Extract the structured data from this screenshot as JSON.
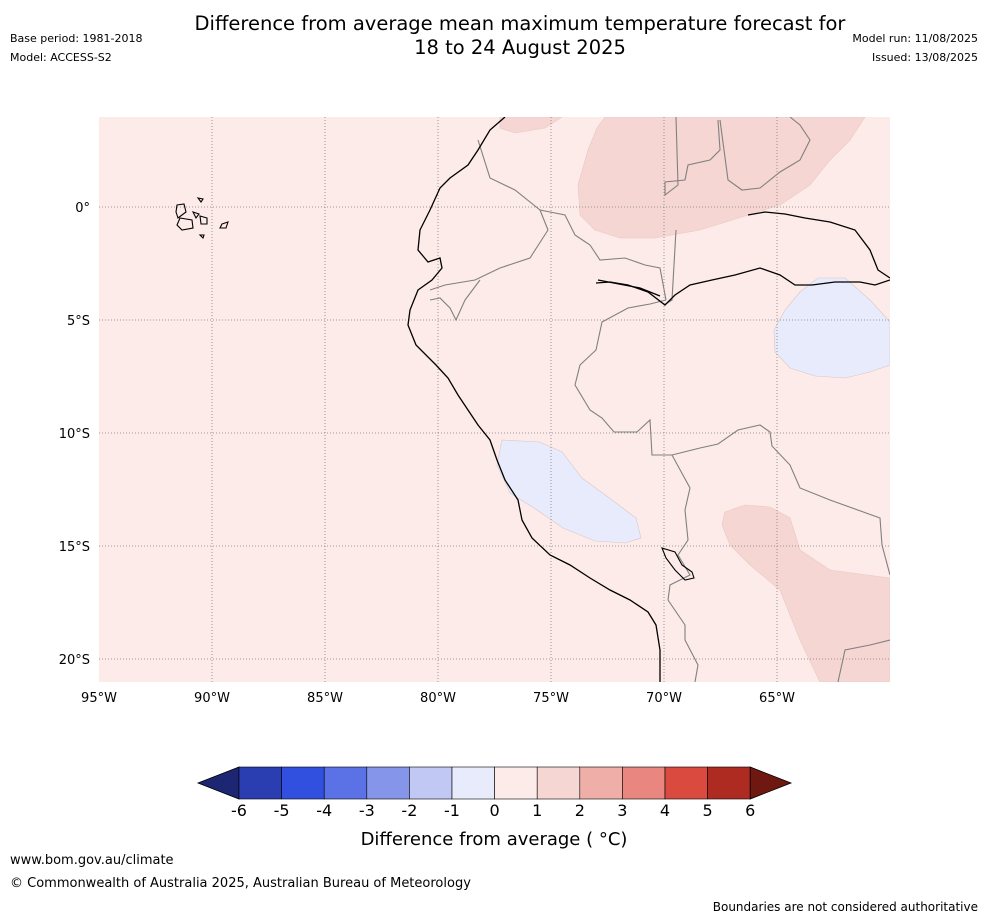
{
  "header": {
    "title_line1": "Difference from average mean maximum temperature forecast for",
    "title_line2": "18 to 24 August 2025",
    "base_period": "Base period: 1981-2018",
    "model": "Model: ACCESS-S2",
    "model_run": "Model run: 11/08/2025",
    "issued": "Issued: 13/08/2025"
  },
  "map": {
    "lat_labels": [
      "0°",
      "5°S",
      "10°S",
      "15°S",
      "20°S"
    ],
    "lon_labels": [
      "95°W",
      "90°W",
      "85°W",
      "80°W",
      "75°W",
      "70°W",
      "65°W"
    ],
    "colors": {
      "background_anomaly": "#fcebe9",
      "warm_anomaly": "#f5d6d2",
      "cool_anomaly": "#e7ebfb",
      "coastline": "#000000",
      "borders": "#808080",
      "gridlines": "#7f7f7f"
    }
  },
  "colorbar": {
    "label": "Difference from average ( °C)",
    "ticks": [
      "-6",
      "-5",
      "-4",
      "-3",
      "-2",
      "-1",
      "0",
      "1",
      "2",
      "3",
      "4",
      "5",
      "6"
    ],
    "colors": [
      "#1c2673",
      "#2a3eb1",
      "#3150e0",
      "#5a72e6",
      "#8595ea",
      "#c1c8f4",
      "#e7ebfb",
      "#fcebe9",
      "#f5d6d2",
      "#efaea8",
      "#e8867f",
      "#da4a3e",
      "#ad2b21",
      "#6e1811"
    ]
  },
  "footer": {
    "url": "www.bom.gov.au/climate",
    "copyright": "© Commonwealth of Australia 2025, Australian Bureau of Meteorology",
    "disclaimer": "Boundaries are not considered authoritative"
  }
}
